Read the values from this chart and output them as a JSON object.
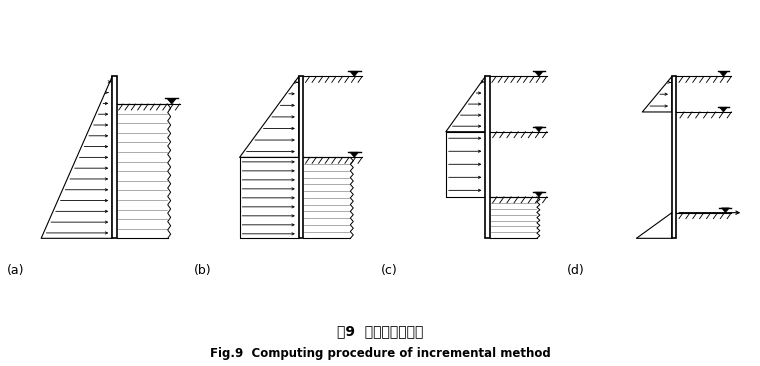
{
  "title_cn": "图9  增量法计算过程",
  "title_en": "Fig.9  Computing procedure of incremental method",
  "panels": [
    "(a)",
    "(b)",
    "(c)",
    "(d)"
  ],
  "bg_color": "#ffffff",
  "figure_width": 7.6,
  "figure_height": 3.66
}
